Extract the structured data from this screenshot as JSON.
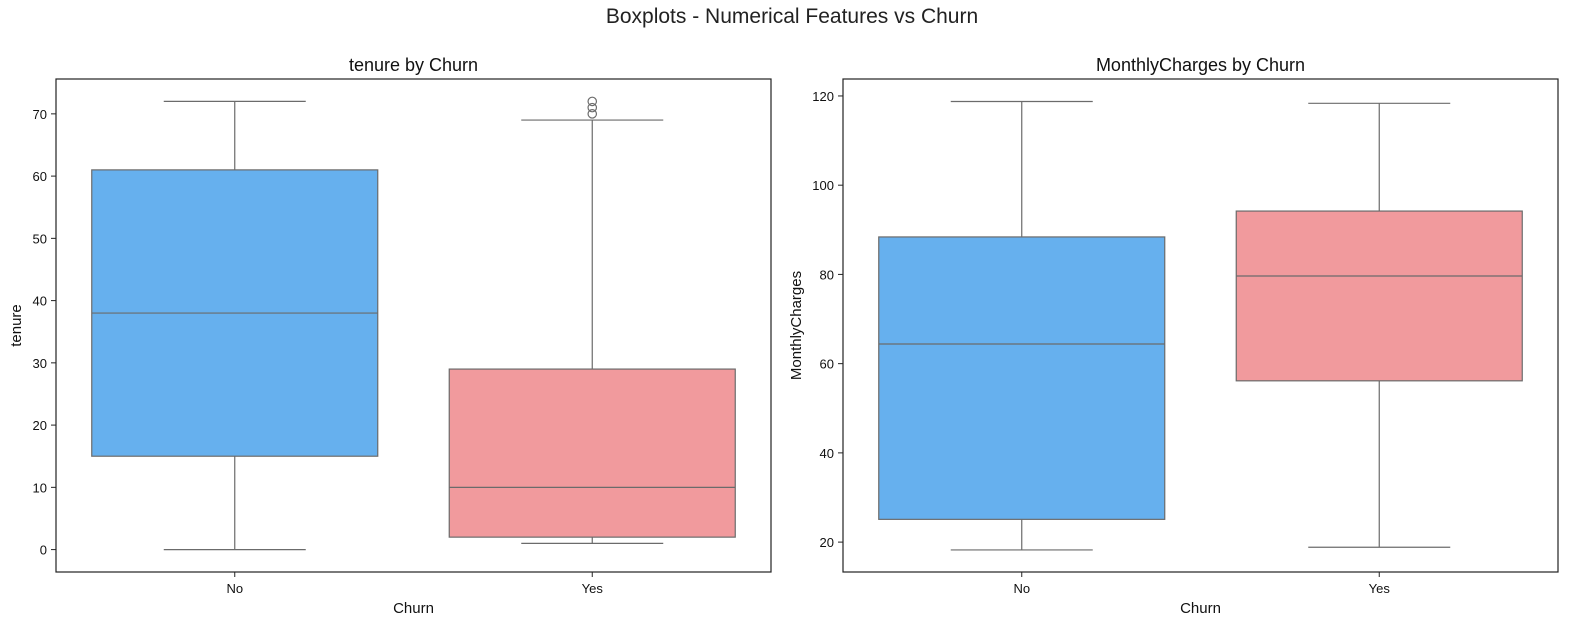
{
  "figure": {
    "suptitle": "Boxplots - Numerical Features vs Churn"
  },
  "chart_data": [
    {
      "type": "box",
      "title": "tenure by Churn",
      "xlabel": "Churn",
      "ylabel": "tenure",
      "categories": [
        "No",
        "Yes"
      ],
      "ylim": [
        -3.6,
        75.6
      ],
      "yticks": [
        0,
        10,
        20,
        30,
        40,
        50,
        60,
        70
      ],
      "grid": false,
      "boxes": [
        {
          "category": "No",
          "color": "#66b0ee",
          "whisker_low": 0,
          "q1": 15,
          "median": 38,
          "q3": 61,
          "whisker_high": 72,
          "outliers": []
        },
        {
          "category": "Yes",
          "color": "#f19a9d",
          "whisker_low": 1,
          "q1": 2,
          "median": 10,
          "q3": 29,
          "whisker_high": 69,
          "outliers": [
            70,
            71,
            72
          ]
        }
      ]
    },
    {
      "type": "box",
      "title": "MonthlyCharges by Churn",
      "xlabel": "Churn",
      "ylabel": "MonthlyCharges",
      "categories": [
        "No",
        "Yes"
      ],
      "ylim": [
        13.3,
        123.8
      ],
      "yticks": [
        20,
        40,
        60,
        80,
        100,
        120
      ],
      "grid": false,
      "boxes": [
        {
          "category": "No",
          "color": "#66b0ee",
          "whisker_low": 18.25,
          "q1": 25.1,
          "median": 64.4,
          "q3": 88.4,
          "whisker_high": 118.75,
          "outliers": []
        },
        {
          "category": "Yes",
          "color": "#f19a9d",
          "whisker_low": 18.85,
          "q1": 56.15,
          "median": 79.65,
          "q3": 94.2,
          "whisker_high": 118.35,
          "outliers": []
        }
      ]
    }
  ]
}
